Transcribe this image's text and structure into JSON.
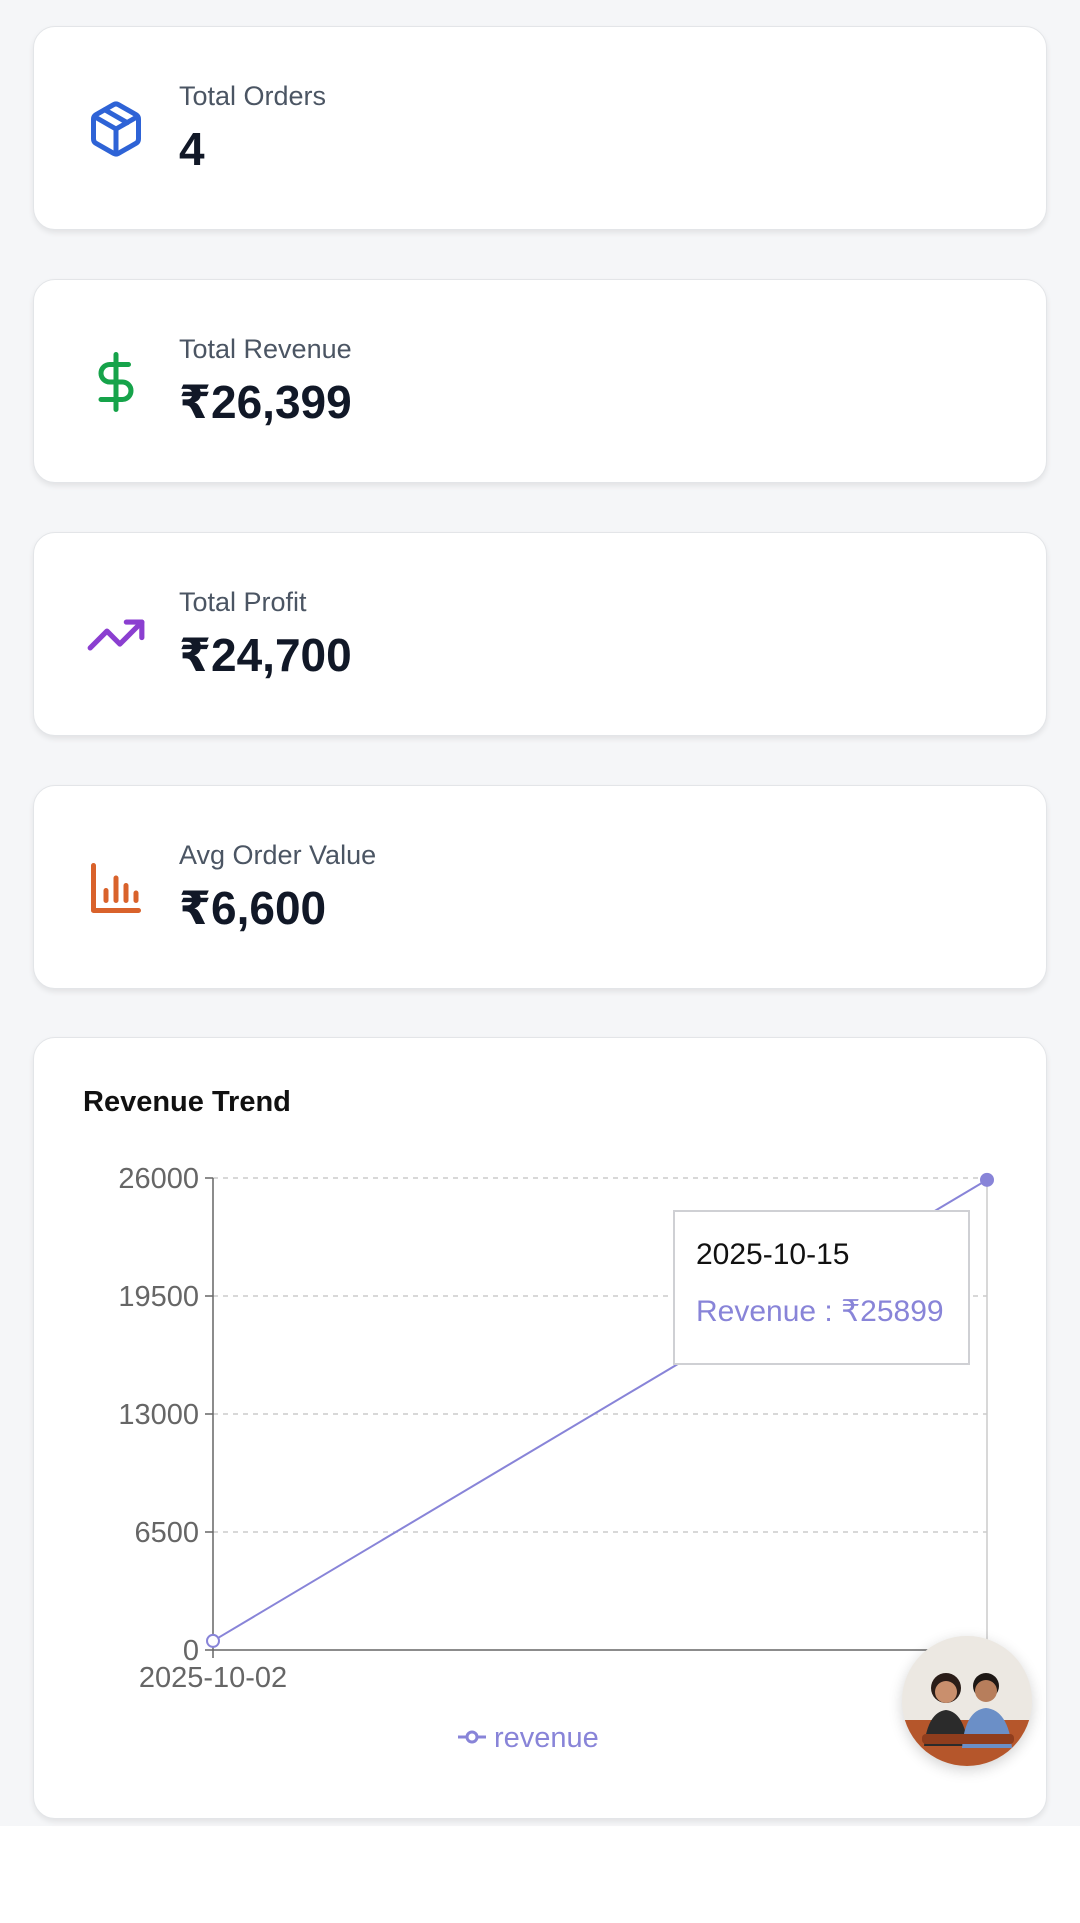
{
  "stats": [
    {
      "label": "Total Orders",
      "value": "4",
      "icon": "package-icon",
      "color": "#2e63d6"
    },
    {
      "label": "Total Revenue",
      "value": "₹26,399",
      "icon": "dollar-icon",
      "color": "#16a34a"
    },
    {
      "label": "Total Profit",
      "value": "₹24,700",
      "icon": "trending-up-icon",
      "color": "#8b3fd0"
    },
    {
      "label": "Avg Order Value",
      "value": "₹6,600",
      "icon": "bar-chart-icon",
      "color": "#d9622b"
    }
  ],
  "revenue_chart": {
    "title": "Revenue Trend",
    "tooltip": {
      "date": "2025-10-15",
      "value_text": "Revenue : ₹25899"
    }
  },
  "chart_data": {
    "type": "line",
    "title": "Revenue Trend",
    "x": [
      "2025-10-02",
      "2025-10-15"
    ],
    "x_tick_labels": [
      "2025-10-02",
      "2025"
    ],
    "series": [
      {
        "name": "revenue",
        "values": [
          500,
          25899
        ],
        "color": "#8884d8"
      }
    ],
    "yticks": [
      0,
      6500,
      13000,
      19500,
      26000
    ],
    "ylim": [
      0,
      26000
    ],
    "grid": "dashed-horizontal",
    "legend": "bottom-center"
  }
}
